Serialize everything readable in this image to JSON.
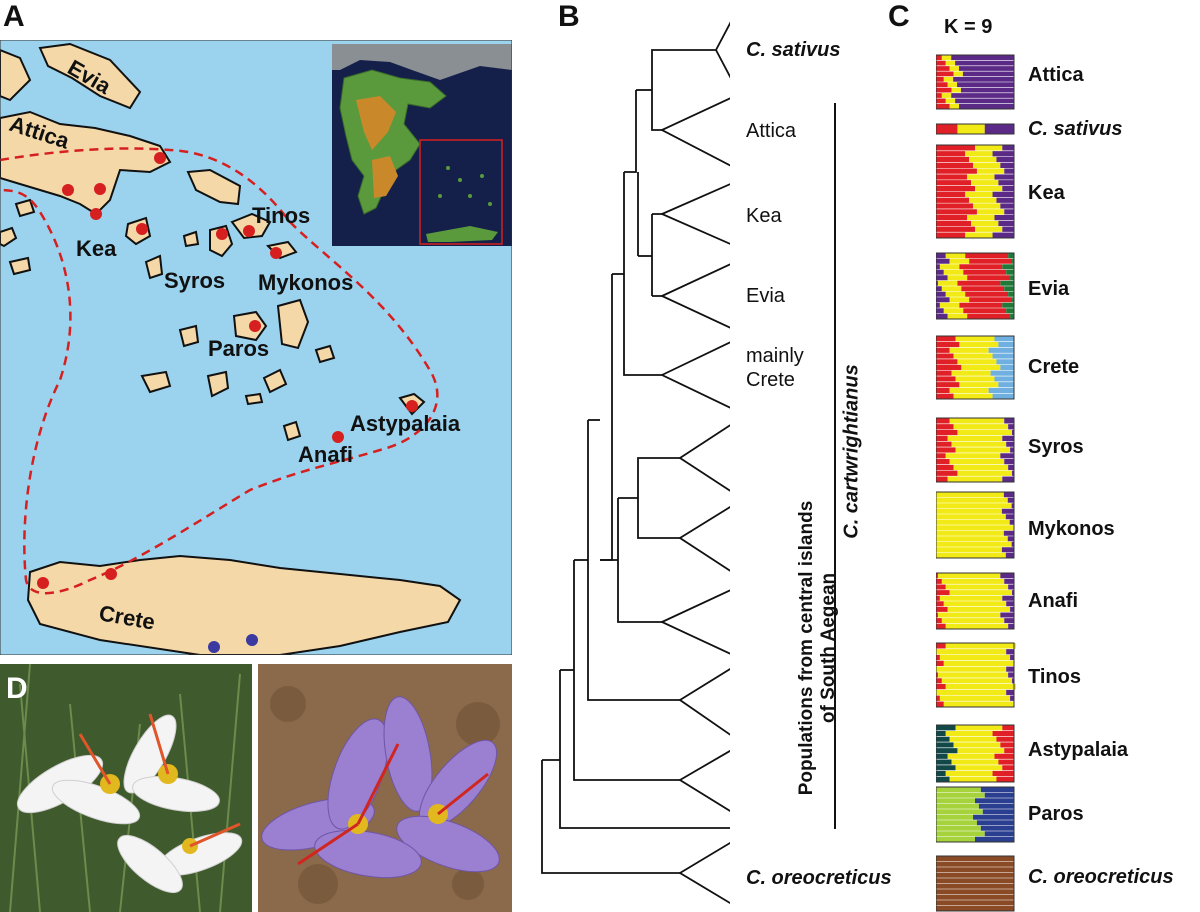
{
  "panels": {
    "a": "A",
    "b": "B",
    "c": "C",
    "d": "D"
  },
  "map": {
    "sea_color": "#9bd3ee",
    "land_color": "#f5d8a8",
    "range_color": "#d62020",
    "labels": {
      "evia": "Evia",
      "attica": "Attica",
      "kea": "Kea",
      "tinos": "Tinos",
      "syros": "Syros",
      "mykonos": "Mykonos",
      "paros": "Paros",
      "astypalaia": "Astypalaia",
      "anafi": "Anafi",
      "crete": "Crete"
    }
  },
  "tree": {
    "clades": {
      "sativus": "C. sativus",
      "attica": "Attica",
      "kea": "Kea",
      "evia": "Evia",
      "crete": "mainly\nCrete",
      "oreocreticus": "C. oreocreticus"
    },
    "central_label": "Populations from central islands of South Aegean",
    "cartwrightianus": "C. cartwrightianus"
  },
  "structure": {
    "k_label": "K = 9",
    "populations": [
      {
        "label": "Attica"
      },
      {
        "label": "C. sativus"
      },
      {
        "label": "Kea"
      },
      {
        "label": "Evia"
      },
      {
        "label": "Crete"
      },
      {
        "label": "Syros"
      },
      {
        "label": "Mykonos"
      },
      {
        "label": "Anafi"
      },
      {
        "label": "Tinos"
      },
      {
        "label": "Astypalaia"
      },
      {
        "label": "Paros"
      },
      {
        "label": "C. oreocreticus"
      }
    ]
  }
}
